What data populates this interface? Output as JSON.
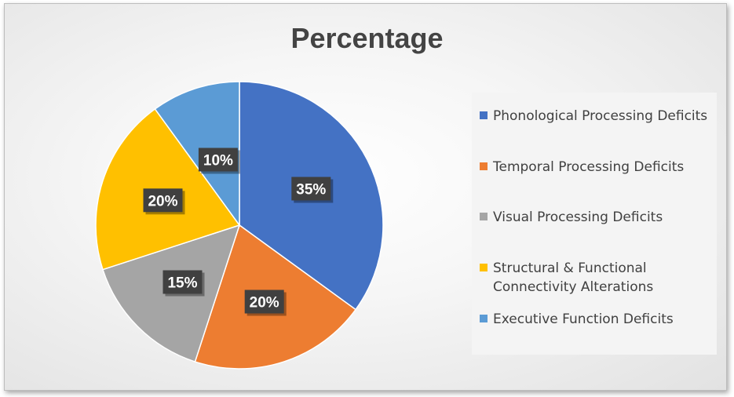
{
  "chart_data": {
    "type": "pie",
    "title": "Percentage",
    "categories": [
      "Phonological Processing Deficits",
      "Temporal Processing Deficits",
      "Visual Processing Deficits",
      "Structural & Functional\nConnectivity Alterations",
      "Executive Function Deficits"
    ],
    "values": [
      35,
      20,
      15,
      20,
      10
    ],
    "data_labels": [
      "35%",
      "20%",
      "15%",
      "20%",
      "10%"
    ],
    "colors": [
      "#4472C4",
      "#ED7D31",
      "#A5A5A5",
      "#FFC000",
      "#5B9BD5"
    ],
    "legend": "right"
  }
}
